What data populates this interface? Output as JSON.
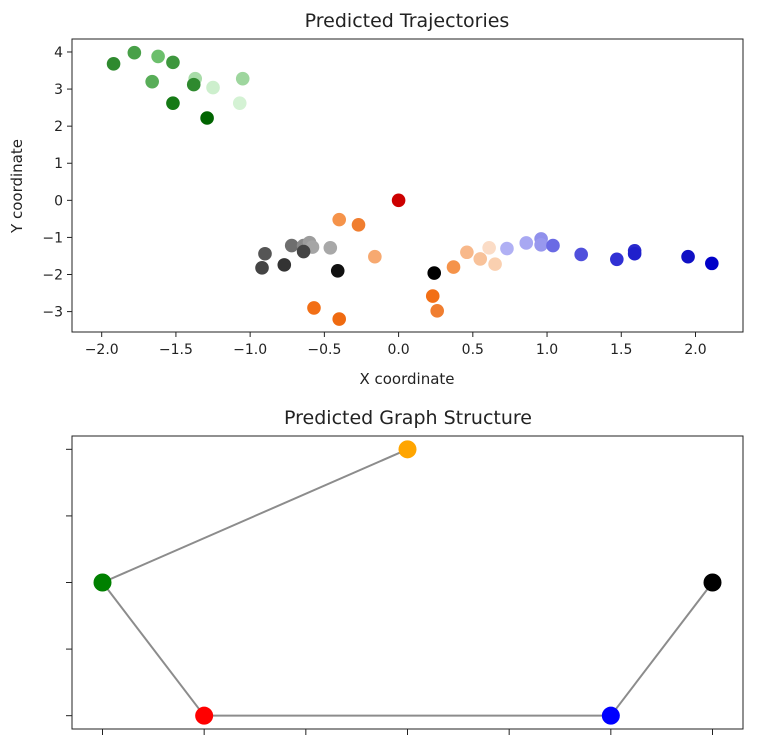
{
  "chart_data": [
    {
      "type": "scatter",
      "title": "Predicted Trajectories",
      "xlabel": "X coordinate",
      "ylabel": "Y coordinate",
      "xlim": [
        -2.2,
        2.32
      ],
      "ylim": [
        -3.55,
        4.35
      ],
      "xticks": [
        -2.0,
        -1.5,
        -1.0,
        -0.5,
        0.0,
        0.5,
        1.0,
        1.5,
        2.0
      ],
      "xtick_labels": [
        "−2.0",
        "−1.5",
        "−1.0",
        "−0.5",
        "0.0",
        "0.5",
        "1.0",
        "1.5",
        "2.0"
      ],
      "yticks": [
        4,
        3,
        2,
        1,
        0,
        -1,
        -2,
        -3
      ],
      "ytick_labels": [
        "4",
        "3",
        "2",
        "1",
        "0",
        "−1",
        "−2",
        "−3"
      ],
      "grid": false,
      "series": [
        {
          "color_family": "green",
          "points": [
            {
              "x": -1.92,
              "y": 3.68,
              "color": "#2f8a2f"
            },
            {
              "x": -1.78,
              "y": 3.98,
              "color": "#48a048"
            },
            {
              "x": -1.62,
              "y": 3.88,
              "color": "#6cbf6c"
            },
            {
              "x": -1.52,
              "y": 3.72,
              "color": "#3e973e"
            },
            {
              "x": -1.66,
              "y": 3.2,
              "color": "#58ad58"
            },
            {
              "x": -1.37,
              "y": 3.28,
              "color": "#a8dca8"
            },
            {
              "x": -1.38,
              "y": 3.12,
              "color": "#2f8a2f"
            },
            {
              "x": -1.25,
              "y": 3.04,
              "color": "#cdefcd"
            },
            {
              "x": -1.05,
              "y": 3.28,
              "color": "#9ed69e"
            },
            {
              "x": -1.07,
              "y": 2.62,
              "color": "#d4f2d4"
            },
            {
              "x": -1.52,
              "y": 2.62,
              "color": "#157a15"
            },
            {
              "x": -1.29,
              "y": 2.22,
              "color": "#006400"
            }
          ]
        },
        {
          "color_family": "red",
          "points": [
            {
              "x": 0.0,
              "y": 0.0,
              "color": "#cc0000"
            }
          ]
        },
        {
          "color_family": "gray",
          "points": [
            {
              "x": -0.9,
              "y": -1.44,
              "color": "#555555"
            },
            {
              "x": -0.92,
              "y": -1.82,
              "color": "#444444"
            },
            {
              "x": -0.77,
              "y": -1.74,
              "color": "#333333"
            },
            {
              "x": -0.72,
              "y": -1.22,
              "color": "#6e6e6e"
            },
            {
              "x": -0.64,
              "y": -1.22,
              "color": "#888888"
            },
            {
              "x": -0.6,
              "y": -1.14,
              "color": "#9c9c9c"
            },
            {
              "x": -0.58,
              "y": -1.26,
              "color": "#a5a5a5"
            },
            {
              "x": -0.64,
              "y": -1.38,
              "color": "#444444"
            },
            {
              "x": -0.46,
              "y": -1.28,
              "color": "#a8a8a8"
            },
            {
              "x": -0.41,
              "y": -1.9,
              "color": "#111111"
            },
            {
              "x": 0.24,
              "y": -1.96,
              "color": "#000000"
            }
          ]
        },
        {
          "color_family": "orange",
          "points": [
            {
              "x": -0.4,
              "y": -0.52,
              "color": "#f5934a"
            },
            {
              "x": -0.27,
              "y": -0.66,
              "color": "#f07e30"
            },
            {
              "x": -0.16,
              "y": -1.52,
              "color": "#f7a970"
            },
            {
              "x": -0.57,
              "y": -2.9,
              "color": "#f26f16"
            },
            {
              "x": -0.4,
              "y": -3.2,
              "color": "#ef6a10"
            },
            {
              "x": 0.23,
              "y": -2.58,
              "color": "#f26f16"
            },
            {
              "x": 0.26,
              "y": -2.98,
              "color": "#f07e30"
            },
            {
              "x": 0.37,
              "y": -1.8,
              "color": "#f5934a"
            },
            {
              "x": 0.46,
              "y": -1.4,
              "color": "#f8b88a"
            },
            {
              "x": 0.55,
              "y": -1.58,
              "color": "#f8c29a"
            },
            {
              "x": 0.61,
              "y": -1.28,
              "color": "#fbdcc6"
            },
            {
              "x": 0.65,
              "y": -1.72,
              "color": "#fad0b0"
            }
          ]
        },
        {
          "color_family": "blue",
          "points": [
            {
              "x": 0.73,
              "y": -1.3,
              "color": "#b0b0f4"
            },
            {
              "x": 0.86,
              "y": -1.15,
              "color": "#a8a8f2"
            },
            {
              "x": 0.96,
              "y": -1.04,
              "color": "#9090ec"
            },
            {
              "x": 0.96,
              "y": -1.2,
              "color": "#9898ee"
            },
            {
              "x": 1.04,
              "y": -1.22,
              "color": "#6a6ae4"
            },
            {
              "x": 1.23,
              "y": -1.46,
              "color": "#5050dc"
            },
            {
              "x": 1.47,
              "y": -1.59,
              "color": "#3030d4"
            },
            {
              "x": 1.59,
              "y": -1.36,
              "color": "#2a2acc"
            },
            {
              "x": 1.59,
              "y": -1.44,
              "color": "#2020cc"
            },
            {
              "x": 1.95,
              "y": -1.52,
              "color": "#1010c4"
            },
            {
              "x": 2.11,
              "y": -1.7,
              "color": "#0000c8"
            }
          ]
        }
      ]
    },
    {
      "type": "graph",
      "title": "Predicted Graph Structure",
      "xlim": [
        -0.3,
        6.3
      ],
      "ylim": [
        -0.1,
        2.1
      ],
      "xticks": [
        0,
        1,
        2,
        3,
        4,
        5,
        6
      ],
      "yticks": [
        0,
        0.5,
        1,
        1.5,
        2
      ],
      "nodes": [
        {
          "id": "orange",
          "x": 3,
          "y": 2,
          "color": "#ffa500"
        },
        {
          "id": "green",
          "x": 0,
          "y": 1,
          "color": "#008000"
        },
        {
          "id": "red",
          "x": 1,
          "y": 0,
          "color": "#ff0000"
        },
        {
          "id": "blue",
          "x": 5,
          "y": 0,
          "color": "#0000ff"
        },
        {
          "id": "black",
          "x": 6,
          "y": 1,
          "color": "#000000"
        }
      ],
      "edges": [
        [
          "orange",
          "green"
        ],
        [
          "green",
          "red"
        ],
        [
          "red",
          "blue"
        ],
        [
          "blue",
          "black"
        ]
      ],
      "edge_color": "#8c8c8c"
    }
  ]
}
